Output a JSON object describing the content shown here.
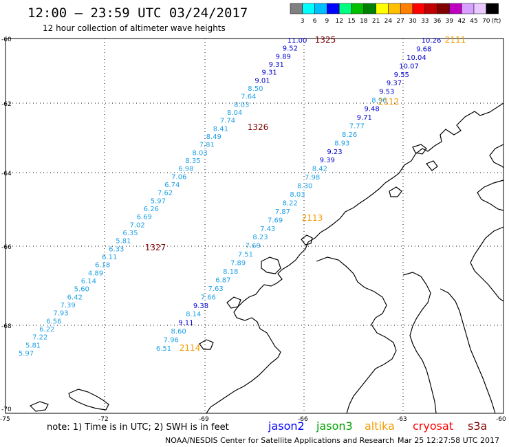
{
  "header": {
    "title": "12:00 – 23:59 UTC 03/24/2017",
    "subtitle": "12 hour collection of altimeter wave heights"
  },
  "color_scale": {
    "labels": [
      "3",
      "6",
      "9",
      "12",
      "15",
      "18",
      "21",
      "24",
      "27",
      "30",
      "33",
      "36",
      "39",
      "42",
      "45",
      "70"
    ],
    "unit": "(ft)",
    "colors": [
      "#808080",
      "#00ffff",
      "#00bfff",
      "#0000ff",
      "#00ff80",
      "#00c000",
      "#008000",
      "#ffff00",
      "#ffc000",
      "#ff8000",
      "#ff0000",
      "#c00000",
      "#800000",
      "#c000c0",
      "#d8a0ff",
      "#e8c8ff",
      "#000000"
    ]
  },
  "axes": {
    "lat_labels": [
      "-60",
      "-62",
      "-64",
      "-66",
      "-68",
      "-70"
    ],
    "lon_labels": [
      "-75",
      "-72",
      "-69",
      "-66",
      "-63",
      "-60"
    ]
  },
  "tracks": {
    "colors": {
      "light": "#1ea0e6",
      "dark": "#0000cc",
      "orange": "#f59a00",
      "maroon": "#800000"
    },
    "ids": [
      {
        "id": "1325",
        "color": "maroon"
      },
      {
        "id": "1326",
        "color": "maroon"
      },
      {
        "id": "1327",
        "color": "maroon"
      },
      {
        "id": "2111",
        "color": "orange"
      },
      {
        "id": "2112",
        "color": "orange"
      },
      {
        "id": "2113",
        "color": "orange"
      },
      {
        "id": "2114",
        "color": "orange"
      }
    ],
    "pass_a": [
      {
        "v": "11.00",
        "c": "dark"
      },
      {
        "v": "9.52",
        "c": "dark"
      },
      {
        "v": "9.89",
        "c": "dark"
      },
      {
        "v": "9.31",
        "c": "dark"
      },
      {
        "v": "9.31",
        "c": "dark"
      },
      {
        "v": "9.01",
        "c": "dark"
      },
      {
        "v": "8.50",
        "c": "light"
      },
      {
        "v": "7.64",
        "c": "light"
      },
      {
        "v": "8.03",
        "c": "light"
      },
      {
        "v": "8.04",
        "c": "light"
      },
      {
        "v": "7.74",
        "c": "light"
      },
      {
        "v": "8.41",
        "c": "light"
      },
      {
        "v": "8.49",
        "c": "light"
      },
      {
        "v": "7.81",
        "c": "light"
      },
      {
        "v": "8.03",
        "c": "light"
      },
      {
        "v": "8.35",
        "c": "light"
      },
      {
        "v": "6.98",
        "c": "light"
      },
      {
        "v": "7.06",
        "c": "light"
      },
      {
        "v": "6.74",
        "c": "light"
      },
      {
        "v": "7.62",
        "c": "light"
      },
      {
        "v": "5.97",
        "c": "light"
      },
      {
        "v": "6.26",
        "c": "light"
      },
      {
        "v": "6.69",
        "c": "light"
      },
      {
        "v": "7.02",
        "c": "light"
      },
      {
        "v": "6.35",
        "c": "light"
      },
      {
        "v": "5.81",
        "c": "light"
      },
      {
        "v": "6.33",
        "c": "light"
      },
      {
        "v": "6.11",
        "c": "light"
      },
      {
        "v": "6.18",
        "c": "light"
      },
      {
        "v": "4.89",
        "c": "light"
      },
      {
        "v": "6.14",
        "c": "light"
      },
      {
        "v": "5.60",
        "c": "light"
      },
      {
        "v": "6.42",
        "c": "light"
      },
      {
        "v": "7.39",
        "c": "light"
      },
      {
        "v": "7.93",
        "c": "light"
      },
      {
        "v": "6.56",
        "c": "light"
      },
      {
        "v": "6.22",
        "c": "light"
      },
      {
        "v": "7.22",
        "c": "light"
      },
      {
        "v": "5.81",
        "c": "light"
      },
      {
        "v": "5.97",
        "c": "light"
      }
    ],
    "pass_b": [
      {
        "v": "10.26",
        "c": "dark"
      },
      {
        "v": "9.68",
        "c": "dark"
      },
      {
        "v": "10.04",
        "c": "dark"
      },
      {
        "v": "10.07",
        "c": "dark"
      },
      {
        "v": "9.55",
        "c": "dark"
      },
      {
        "v": "9.37",
        "c": "dark"
      },
      {
        "v": "9.53",
        "c": "dark"
      },
      {
        "v": "8.96",
        "c": "light"
      },
      {
        "v": "9.48",
        "c": "dark"
      },
      {
        "v": "9.71",
        "c": "dark"
      },
      {
        "v": "7.77",
        "c": "light"
      },
      {
        "v": "8.26",
        "c": "light"
      },
      {
        "v": "8.93",
        "c": "light"
      },
      {
        "v": "9.23",
        "c": "dark"
      },
      {
        "v": "9.39",
        "c": "dark"
      },
      {
        "v": "8.42",
        "c": "light"
      },
      {
        "v": "7.98",
        "c": "light"
      },
      {
        "v": "8.30",
        "c": "light"
      },
      {
        "v": "8.03",
        "c": "light"
      },
      {
        "v": "8.22",
        "c": "light"
      },
      {
        "v": "7.87",
        "c": "light"
      },
      {
        "v": "7.69",
        "c": "light"
      },
      {
        "v": "7.43",
        "c": "light"
      },
      {
        "v": "8.23",
        "c": "light"
      },
      {
        "v": "7.69",
        "c": "light"
      },
      {
        "v": "7.51",
        "c": "light"
      },
      {
        "v": "7.89",
        "c": "light"
      },
      {
        "v": "8.18",
        "c": "light"
      },
      {
        "v": "6.87",
        "c": "light"
      },
      {
        "v": "7.63",
        "c": "light"
      },
      {
        "v": "7.66",
        "c": "light"
      },
      {
        "v": "9.38",
        "c": "dark"
      },
      {
        "v": "8.14",
        "c": "light"
      },
      {
        "v": "9.11",
        "c": "dark"
      },
      {
        "v": "8.60",
        "c": "light"
      },
      {
        "v": "7.96",
        "c": "light"
      },
      {
        "v": "6.51",
        "c": "light"
      }
    ]
  },
  "footer": {
    "note": "note: 1) Time is in UTC; 2) SWH is in feet",
    "satellites": [
      {
        "name": "jason2",
        "color": "#0000ff"
      },
      {
        "name": "jason3",
        "color": "#00a000"
      },
      {
        "name": "altika",
        "color": "#f59a00"
      },
      {
        "name": "cryosat",
        "color": "#ff0000"
      },
      {
        "name": "s3a",
        "color": "#800000"
      }
    ],
    "credit": "NOAA/NESDIS Center for Satellite Applications and Research",
    "timestamp": "Mar 25 12:27:58 UTC 2017"
  }
}
